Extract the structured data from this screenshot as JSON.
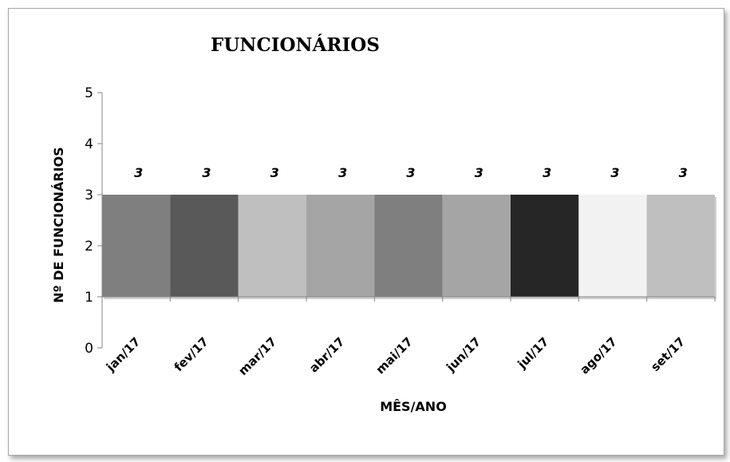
{
  "chart_data": {
    "type": "bar",
    "title": "FUNCIONÁRIOS",
    "xlabel": "MÊS/ANO",
    "ylabel": "Nº DE FUNCIONÁRIOS",
    "categories": [
      "jan/17",
      "fev/17",
      "mar/17",
      "abr/17",
      "mai/17",
      "jun/17",
      "jul/17",
      "ago/17",
      "set/17"
    ],
    "values": [
      3,
      3,
      3,
      3,
      3,
      3,
      3,
      3,
      3
    ],
    "data_labels": [
      "3",
      "3",
      "3",
      "3",
      "3",
      "3",
      "3",
      "3",
      "3"
    ],
    "bar_colors": [
      "#7f7f7f",
      "#595959",
      "#bfbfbf",
      "#a5a5a5",
      "#7f7f7f",
      "#a5a5a5",
      "#262626",
      "#f2f2f2",
      "#bfbfbf"
    ],
    "ylim": [
      0,
      5
    ],
    "yticks": [
      0,
      1,
      2,
      3,
      4,
      5
    ],
    "grid": false,
    "legend": "none"
  }
}
